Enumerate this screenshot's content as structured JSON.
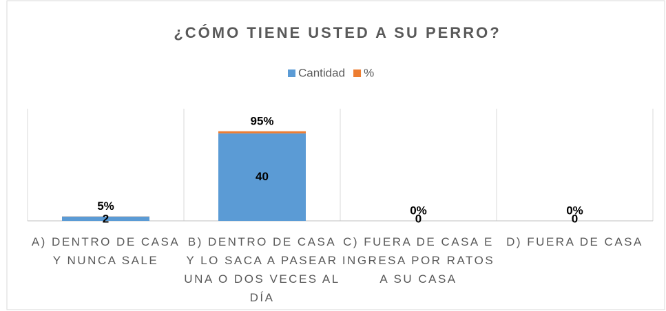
{
  "chart_data": {
    "type": "stacked_bar",
    "title": "¿CÓMO TIENE USTED A SU PERRO?",
    "categories": [
      "A) DENTRO DE CASA Y NUNCA SALE",
      "B) DENTRO DE CASA Y LO SACA A PASEAR UNA O DOS VECES AL DÍA",
      "C) FUERA DE CASA E INGRESA POR RATOS A SU CASA",
      "D) FUERA DE CASA"
    ],
    "series": [
      {
        "name": "Cantidad",
        "color": "#5b9bd5",
        "values": [
          2,
          40,
          0,
          0
        ]
      },
      {
        "name": "%",
        "color": "#ed7d31",
        "values": [
          0.05,
          0.95,
          0,
          0
        ],
        "value_labels": [
          "5%",
          "95%",
          "0%",
          "0%"
        ]
      }
    ],
    "ylim": [
      0,
      50
    ],
    "legend": "top"
  }
}
